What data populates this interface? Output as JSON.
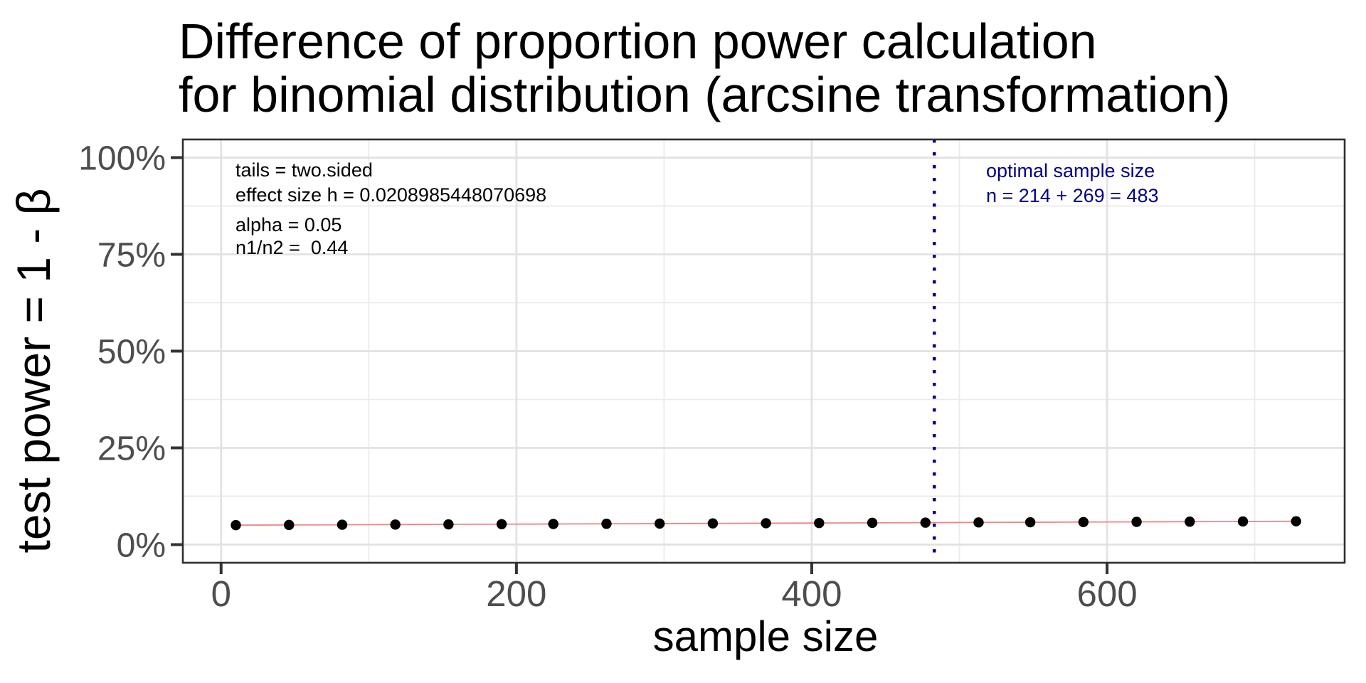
{
  "title": {
    "line1": "Difference of proportion power calculation",
    "line2": "for binomial distribution (arcsine transformation)"
  },
  "x_axis": {
    "label": "sample size",
    "tick_labels": [
      "0",
      "200",
      "400",
      "600"
    ],
    "tick_values": [
      0,
      200,
      400,
      600
    ],
    "minor_tick_values": [
      100,
      300,
      500,
      700
    ],
    "range": [
      -25.9,
      760.9
    ]
  },
  "y_axis": {
    "label": "test power = 1 - β",
    "tick_labels": [
      "0%",
      "25%",
      "50%",
      "75%",
      "100%"
    ],
    "tick_values": [
      0,
      25,
      50,
      75,
      100
    ],
    "minor_tick_values": [
      12.5,
      37.5,
      62.5,
      87.5
    ],
    "range": [
      -4.7,
      104.7
    ]
  },
  "annotations": {
    "line1": "tails = two.sided",
    "line2": "effect size h = 0.0208985448070698",
    "line3": "alpha = 0.05",
    "line4": "n1/n2 =  0.44"
  },
  "optimal": {
    "line1": "optimal sample size",
    "line2": "n = 214 + 269 = 483",
    "n": 483
  },
  "colors": {
    "background": "#ffffff",
    "grid_major": "#e2e2e2",
    "grid_minor": "#ebebeb",
    "panel_border": "#2f2f2f",
    "tick": "#333333",
    "tick_label": "#4d4d4d",
    "title": "#000000",
    "annotation": "#000000",
    "optimal_blue": "#00008b",
    "power_line": "#ef8585",
    "point": "#000000"
  },
  "chart_data": {
    "type": "line",
    "title": "Difference of proportion power calculation for binomial distribution (arcsine transformation)",
    "xlabel": "sample size",
    "ylabel": "test power = 1 - β",
    "x": [
      10,
      46,
      82,
      118,
      154,
      190,
      225,
      261,
      297,
      333,
      369,
      405,
      441,
      477,
      513,
      548,
      584,
      620,
      656,
      692,
      728
    ],
    "power_pct": [
      5.02,
      5.07,
      5.12,
      5.17,
      5.22,
      5.27,
      5.32,
      5.37,
      5.42,
      5.47,
      5.52,
      5.57,
      5.62,
      5.67,
      5.72,
      5.77,
      5.82,
      5.87,
      5.92,
      5.97,
      6.02
    ],
    "vline_x": 483,
    "xlim": [
      -25.9,
      760.9
    ],
    "ylim_pct": [
      -4.7,
      104.7
    ],
    "grid": true,
    "legend": false
  }
}
